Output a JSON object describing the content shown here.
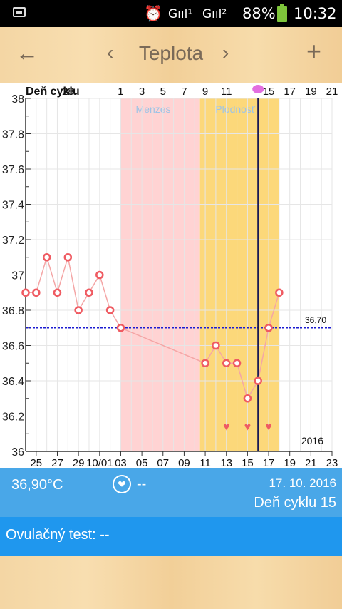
{
  "status_bar": {
    "battery_percent": "88%",
    "time": "10:32",
    "signal_1": "Gııl¹",
    "signal_2": "Gııl²",
    "alarm_icon": "alarm-clock-icon",
    "notification_icon": "image-icon"
  },
  "toolbar": {
    "back_icon": "←",
    "prev_icon": "‹",
    "title": "Teplota",
    "next_icon": "›",
    "add_icon": "+"
  },
  "chart_data": {
    "type": "line",
    "title": "",
    "ylabel": "",
    "xlabel": "",
    "ylim": [
      36,
      38
    ],
    "y_ticks": [
      "36",
      "36.2",
      "36.4",
      "36.6",
      "36.8",
      "37",
      "37.2",
      "37.4",
      "37.6",
      "37.8",
      "38"
    ],
    "cycle_label": "Deň cyklu",
    "cycle_ticks": [
      "28",
      "1",
      "3",
      "5",
      "7",
      "9",
      "11",
      "15",
      "17",
      "19",
      "21"
    ],
    "date_ticks": [
      "25",
      "27",
      "29",
      "10/01",
      "03",
      "05",
      "07",
      "09",
      "11",
      "13",
      "15",
      "17",
      "19",
      "21",
      "23"
    ],
    "year": "2016",
    "x_start_day": 24,
    "x_end_day": 52,
    "series": [
      {
        "x": [
          24,
          25,
          26,
          27,
          28,
          29,
          30,
          31,
          32,
          33,
          41,
          42,
          43,
          44,
          45,
          46,
          47,
          48
        ],
        "y": [
          36.9,
          36.9,
          37.1,
          36.9,
          37.1,
          36.8,
          36.9,
          37.0,
          36.8,
          36.7,
          36.5,
          36.6,
          36.5,
          36.5,
          36.3,
          36.4,
          36.7,
          36.9
        ]
      }
    ],
    "coverline": {
      "value": 36.7,
      "label": "36,70"
    },
    "bands": [
      {
        "label": "Menzes",
        "from_day": 33,
        "to_day": 40.5,
        "color": "#ffd3d3",
        "label_color": "#9ec4e6"
      },
      {
        "label": "Plodnosť",
        "from_day": 40.5,
        "to_day": 48,
        "color": "#fcd87a",
        "label_color": "#9ec4e6"
      }
    ],
    "ovulation_day": 46,
    "heart_markers_days": [
      43,
      45,
      47
    ],
    "colors": {
      "line": "#f4a6a6",
      "marker": "#ef5b62",
      "coverline": "#1b1bd1",
      "ovulation_line": "#1a1a55",
      "heart": "#ef5b62"
    }
  },
  "info_bar": {
    "temperature": "36,90°C",
    "heart_value": "--",
    "date": "17. 10. 2016",
    "cycle_day": "Deň cyklu 15"
  },
  "ovulation_test": {
    "label": "Ovulačný test: --"
  }
}
